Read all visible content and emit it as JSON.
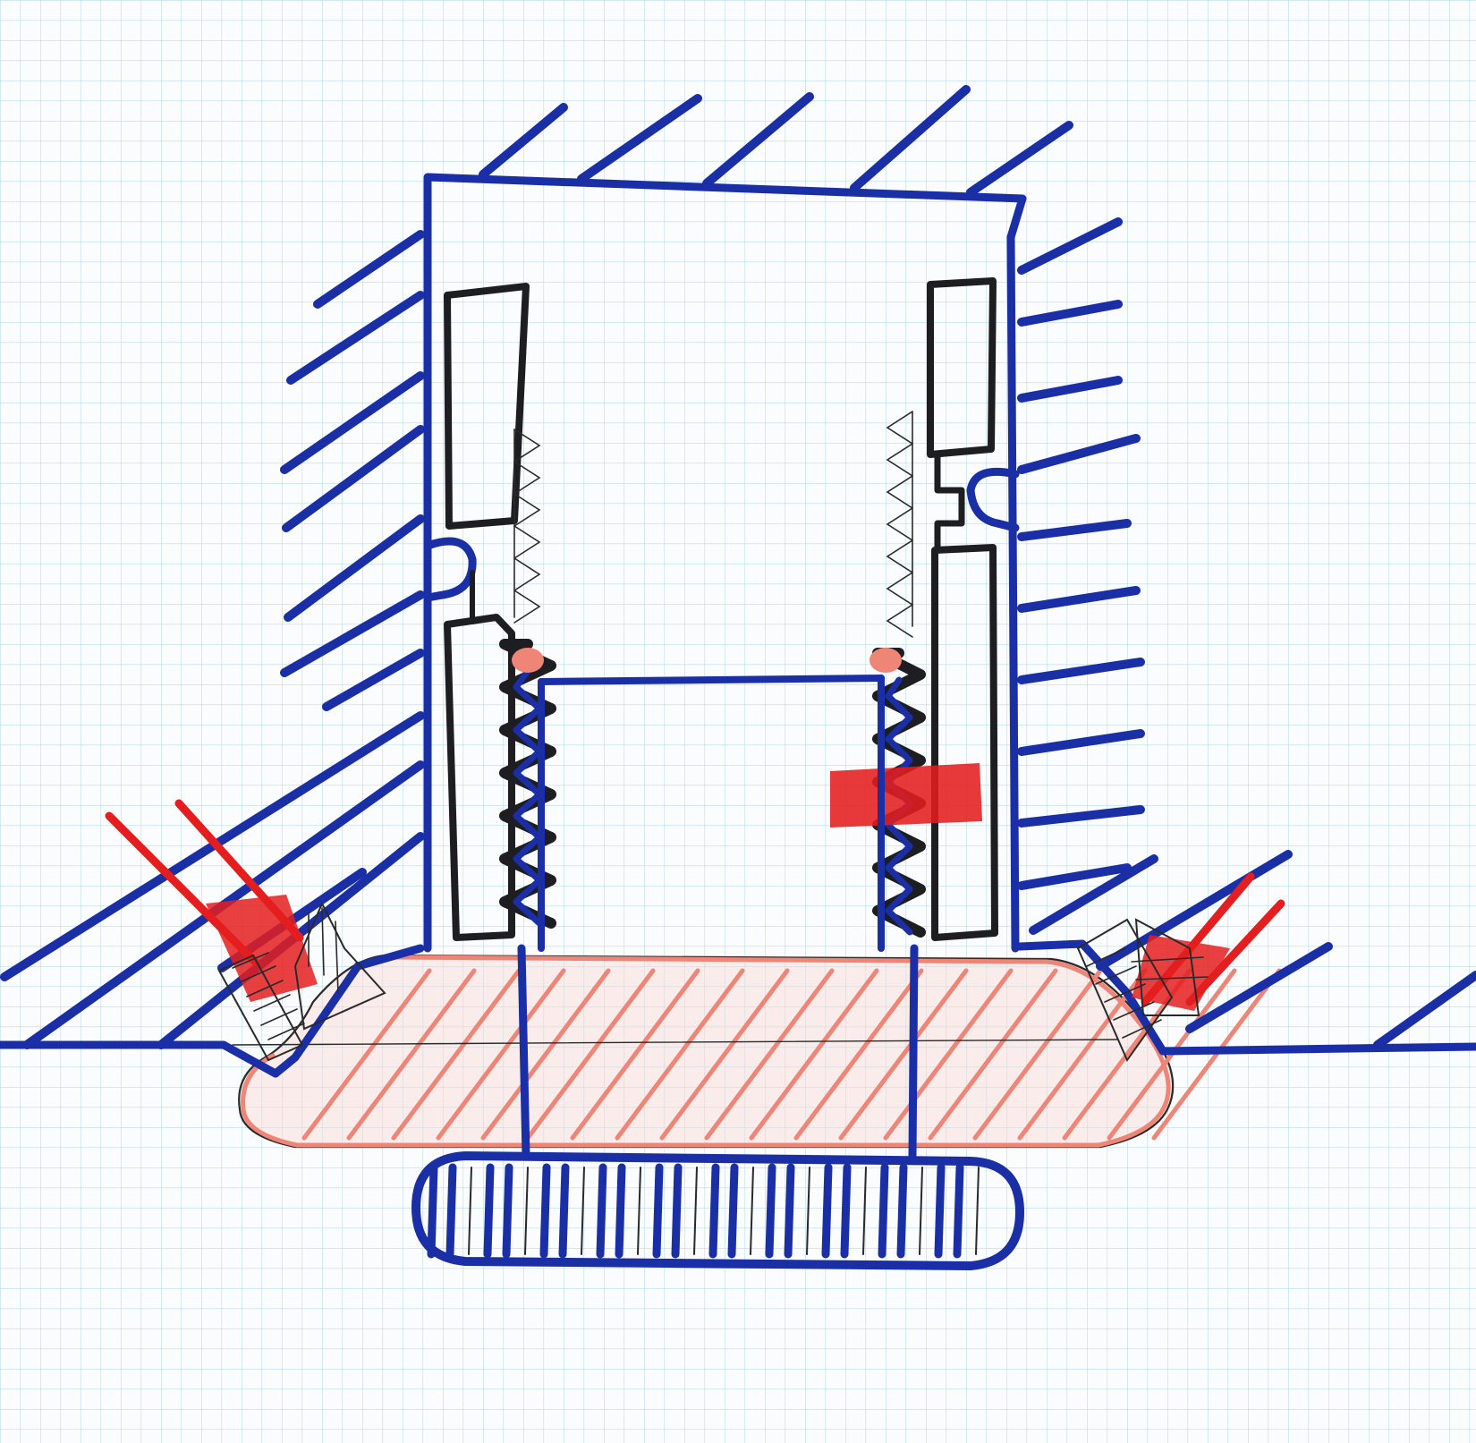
{
  "drawing": {
    "kind": "hand-drawn mechanical cross-section sketch on grid paper",
    "text_labels": []
  },
  "colors": {
    "paper": "#fbfcfd",
    "grid": "#b9dcea",
    "blue_ink": "#1a2fa6",
    "black_ink": "#1e1e22",
    "red_ink": "#e41e1e",
    "salmon_ink": "#ee8577"
  },
  "parts": [
    {
      "id": "housing",
      "icon": "hatched-housing"
    },
    {
      "id": "left-sleeve",
      "icon": "sleeve"
    },
    {
      "id": "right-sleeve",
      "icon": "sleeve"
    },
    {
      "id": "internal-thread",
      "icon": "thread"
    },
    {
      "id": "spring-left",
      "icon": "spring"
    },
    {
      "id": "spring-right",
      "icon": "spring"
    },
    {
      "id": "plate",
      "icon": "hatched-plate"
    },
    {
      "id": "knurled-knob",
      "icon": "knob"
    },
    {
      "id": "screws",
      "icon": "screw"
    },
    {
      "id": "red-markers",
      "icon": "red-marker"
    }
  ]
}
